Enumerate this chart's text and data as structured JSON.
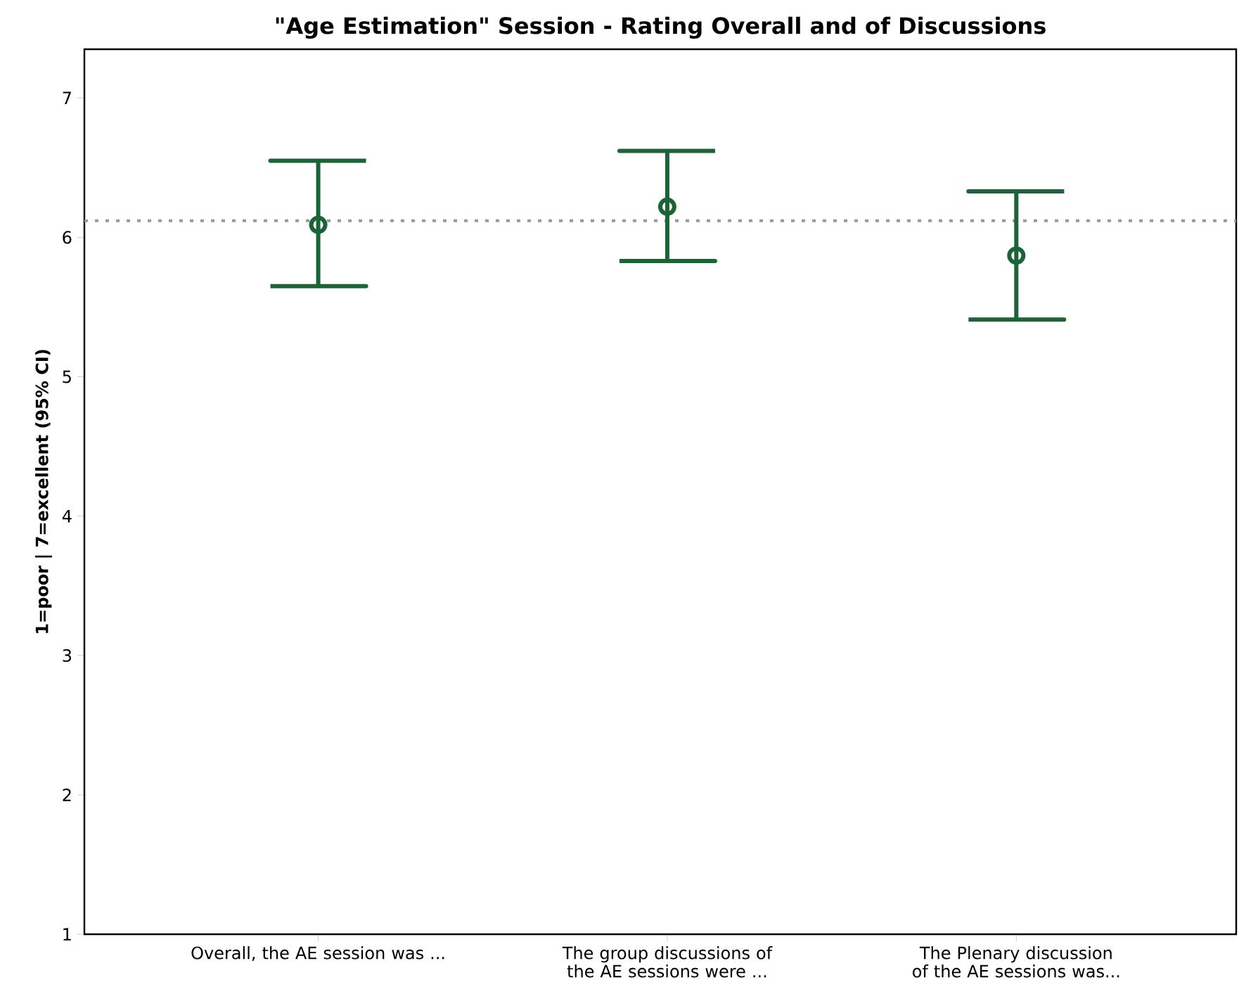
{
  "chart_data": {
    "type": "scatter",
    "title": "\"Age Estimation\" Session - Rating Overall and of Discussions",
    "ylabel": "1=poor  |  7=excellent  (95% CI)",
    "categories": [
      "Overall, the AE session was ...",
      "The group discussions of the AE sessions were ...",
      "The Plenary discussion of the AE sessions was..."
    ],
    "color": "#1b6437",
    "values": [
      6.09,
      6.22,
      5.87
    ],
    "errors": [
      [
        5.65,
        6.55
      ],
      [
        5.83,
        6.62
      ],
      [
        5.41,
        6.33
      ]
    ],
    "marker": "circle",
    "ylim": [
      1,
      7.35
    ],
    "yticks": [
      1,
      2,
      3,
      4,
      5,
      6,
      7
    ],
    "ref_lines": [
      {
        "axis": "y",
        "value": 6.12,
        "color": "#999999",
        "line_style": "dotted"
      }
    ]
  }
}
